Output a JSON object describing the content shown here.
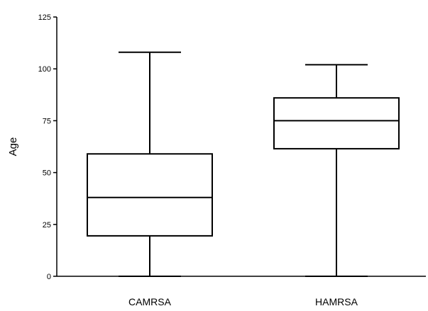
{
  "chart_data": {
    "type": "box",
    "title": "",
    "xlabel": "",
    "ylabel": "Age",
    "ylim": [
      0,
      125
    ],
    "yticks": [
      0,
      25,
      50,
      75,
      100,
      125
    ],
    "ytick_labels": [
      "0",
      "25",
      "50",
      "75",
      "100",
      "125"
    ],
    "categories": [
      "CAMRSA",
      "HAMRSA"
    ],
    "boxes": [
      {
        "category": "CAMRSA",
        "min": 0,
        "q1": 19.5,
        "median": 38,
        "q3": 59,
        "max": 108
      },
      {
        "category": "HAMRSA",
        "min": 0,
        "q1": 61.5,
        "median": 75,
        "q3": 86,
        "max": 102
      }
    ],
    "grid": false,
    "legend": "none",
    "colors": {
      "line": "#000000",
      "background": "#ffffff"
    }
  }
}
